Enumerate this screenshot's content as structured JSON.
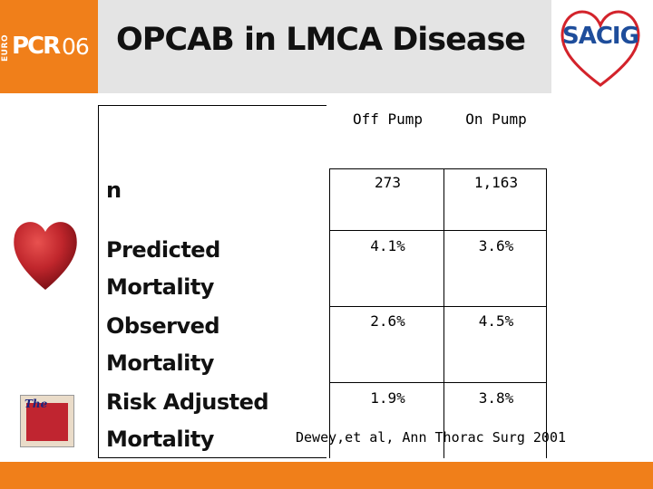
{
  "header": {
    "pcr_logo": {
      "euro": "EURO",
      "main": "PCR",
      "year": "06"
    },
    "title": "OPCAB in LMCA Disease",
    "sacig_logo": "SACIG"
  },
  "table": {
    "columns": [
      "Off Pump",
      "On Pump"
    ],
    "rows": [
      {
        "label": "n",
        "off_pump": "273",
        "on_pump": "1,163"
      },
      {
        "label": "Predicted Mortality",
        "off_pump": "4.1%",
        "on_pump": "3.6%"
      },
      {
        "label": "Observed Mortality",
        "off_pump": "2.6%",
        "on_pump": "4.5%"
      },
      {
        "label": "Risk Adjusted Mortality",
        "off_pump": "1.9%",
        "on_pump": "3.8%"
      }
    ]
  },
  "citation": "Dewey,et al, Ann Thorac Surg 2001",
  "colors": {
    "accent_orange": "#f07f1a",
    "header_gray": "#e4e4e4",
    "heart_red": "#c0262c",
    "sacig_blue": "#1e4d9b"
  }
}
